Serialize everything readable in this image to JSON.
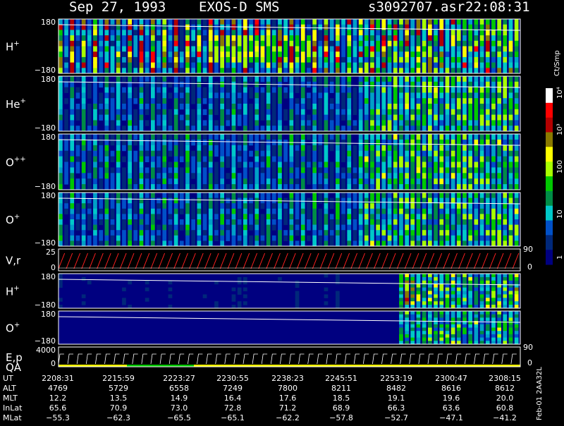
{
  "header": {
    "date": "Sep 27, 1993",
    "instrument": "EXOS-D SMS",
    "file": "s3092707.asr",
    "time": "22:08:31"
  },
  "panels": [
    {
      "species": "H",
      "charge": "+",
      "ymax": "180",
      "ymin": "−180",
      "kind": "spectrogram",
      "level": 0.85
    },
    {
      "species": "He",
      "charge": "+",
      "ymax": "180",
      "ymin": "−180",
      "kind": "spectrogram",
      "level": 0.45
    },
    {
      "species": "O",
      "charge": "++",
      "ymax": "180",
      "ymin": "−180",
      "kind": "spectrogram",
      "level": 0.5
    },
    {
      "species": "O",
      "charge": "+",
      "ymax": "180",
      "ymin": "−180",
      "kind": "spectrogram",
      "level": 0.5
    },
    {
      "species": "V,r",
      "charge": "",
      "ymax": "25",
      "ymin": "0",
      "kind": "line",
      "right_label": "90",
      "right_label_bottom": "0"
    },
    {
      "species": "H",
      "charge": "+",
      "ymax": "180",
      "ymin": "−180",
      "kind": "spectrogram2",
      "level": 0.4
    },
    {
      "species": "O",
      "charge": "+",
      "ymax": "180",
      "ymin": "−180",
      "kind": "spectrogram3",
      "level": 0.35
    },
    {
      "species": "E,p",
      "charge": "",
      "species2": "QA",
      "ymax": "4000",
      "ymin": "0",
      "kind": "energy",
      "right_label": "90",
      "right_label_bottom": "0"
    }
  ],
  "colorbar": {
    "unit": "Ct/Smp",
    "labels": [
      "10⁴",
      "10³",
      "100",
      "10",
      "1"
    ],
    "colors": [
      "#ffffff",
      "#ff0000",
      "#b40000",
      "#8a7a00",
      "#ffff00",
      "#a8ff00",
      "#00c800",
      "#008c46",
      "#00c8c8",
      "#0050c8",
      "#00287a",
      "#000080"
    ]
  },
  "chart_data": {
    "type": "heatmap",
    "title": "Sep 27, 1993  EXOS-D SMS",
    "x": [
      "2208:31",
      "2215:59",
      "2223:27",
      "2230:55",
      "2238:23",
      "2245:51",
      "2253:19",
      "2300:47",
      "2308:15"
    ],
    "table": [
      {
        "name": "UT",
        "values": [
          "2208:31",
          "2215:59",
          "2223:27",
          "2230:55",
          "2238:23",
          "2245:51",
          "2253:19",
          "2300:47",
          "2308:15"
        ]
      },
      {
        "name": "ALT",
        "values": [
          "4769",
          "5729",
          "6558",
          "7249",
          "7800",
          "8211",
          "8482",
          "8616",
          "8612"
        ]
      },
      {
        "name": "MLT",
        "values": [
          "12.2",
          "13.5",
          "14.9",
          "16.4",
          "17.6",
          "18.5",
          "19.1",
          "19.6",
          "20.0"
        ]
      },
      {
        "name": "InLat",
        "values": [
          "65.6",
          "70.9",
          "73.0",
          "72.8",
          "71.2",
          "68.9",
          "66.3",
          "63.6",
          "60.8"
        ]
      },
      {
        "name": "MLat",
        "values": [
          "−55.3",
          "−62.3",
          "−65.5",
          "−65.1",
          "−62.2",
          "−57.8",
          "−52.7",
          "−47.1",
          "−41.2"
        ]
      }
    ]
  },
  "footer_vertical": "Feb-01 2AA32L"
}
